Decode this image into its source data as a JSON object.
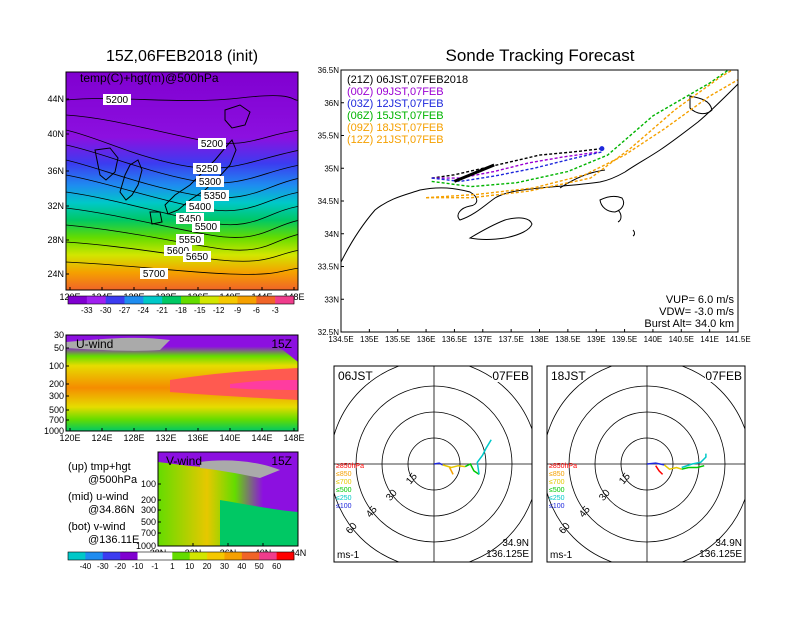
{
  "left_title": "15Z,06FEB2018 (init)",
  "right_title": "Sonde Tracking Forecast",
  "colors": {
    "bg": "#ffffff",
    "purple_deep": "#8a0fd8",
    "green": "#00c800",
    "orange": "#f5a000",
    "black": "#000000",
    "purple_line": "#9b00d3",
    "blue_line": "#1e28dc"
  },
  "chart_data": [
    {
      "type": "heatmap",
      "name_key": "temp_hgt_500hpa",
      "title": "temp(C)+hgt(m)@500hPa",
      "xticks": [
        "120E",
        "124E",
        "128E",
        "132E",
        "136E",
        "140E",
        "144E",
        "148E"
      ],
      "yticks": [
        "24N",
        "28N",
        "32N",
        "36N",
        "40N",
        "44N"
      ],
      "contour_labels": [
        "5200",
        "5200",
        "5250",
        "5300",
        "5350",
        "5400",
        "5450",
        "5500",
        "5550",
        "5600",
        "5650",
        "5700"
      ],
      "colorbar": [
        "-33",
        "-30",
        "-27",
        "-24",
        "-21",
        "-18",
        "-15",
        "-12",
        "-9",
        "-6",
        "-3"
      ]
    },
    {
      "type": "heatmap",
      "name_key": "u_wind",
      "title": "U-wind",
      "time_label": "15Z",
      "xticks": [
        "120E",
        "124E",
        "128E",
        "132E",
        "136E",
        "140E",
        "144E",
        "148E"
      ],
      "yticks": [
        "30",
        "50",
        "100",
        "200",
        "300",
        "500",
        "700",
        "1000"
      ]
    },
    {
      "type": "heatmap",
      "name_key": "v_wind",
      "title": "V-wind",
      "time_label": "15Z",
      "xticks": [
        "28N",
        "32N",
        "36N",
        "40N",
        "44N"
      ],
      "yticks": [
        "100",
        "200",
        "300",
        "500",
        "700",
        "1000"
      ],
      "colorbar": [
        "-40",
        "-30",
        "-20",
        "-10",
        "-1",
        "1",
        "10",
        "20",
        "30",
        "40",
        "50",
        "60"
      ]
    },
    {
      "type": "line",
      "name_key": "sonde_tracks",
      "xticks": [
        "134.5E",
        "135E",
        "135.5E",
        "136E",
        "136.5E",
        "137E",
        "137.5E",
        "138E",
        "138.5E",
        "139E",
        "139.5E",
        "140E",
        "140.5E",
        "141E",
        "141.5E"
      ],
      "yticks": [
        "32.5N",
        "33N",
        "33.5N",
        "34N",
        "34.5N",
        "35N",
        "35.5N",
        "36N",
        "36.5N"
      ],
      "xlim": [
        134.5,
        141.5
      ],
      "ylim": [
        32.5,
        36.5
      ],
      "legend": [
        {
          "label": "(21Z)  06JST,07FEB2018",
          "color": "#000000"
        },
        {
          "label": "(00Z)  09JST,07FEB",
          "color": "#9b00d3"
        },
        {
          "label": "(03Z)  12JST,07FEB",
          "color": "#1e28dc"
        },
        {
          "label": "(06Z)  15JST,07FEB",
          "color": "#00b400"
        },
        {
          "label": "(09Z)  18JST,07FEB",
          "color": "#f5a000"
        },
        {
          "label": "(12Z)  21JST,07FEB",
          "color": "#f5a000"
        }
      ],
      "params": [
        "VUP=  6.0  m/s",
        "VDW= -3.0  m/s",
        "Burst Alt=  34.0  km"
      ]
    },
    {
      "type": "line",
      "name_key": "hodograph_06jst",
      "left_label": "06JST",
      "right_label": "07FEB",
      "radial_labels": [
        "15",
        "30",
        "45",
        "60"
      ],
      "level_legend": [
        "≥850hPa",
        "≤850",
        "≤700",
        "≤500",
        "≤250",
        "≤100"
      ],
      "unit": "ms-1",
      "location": [
        "34.9N",
        "136.125E"
      ]
    },
    {
      "type": "line",
      "name_key": "hodograph_18jst",
      "left_label": "18JST",
      "right_label": "07FEB",
      "radial_labels": [
        "15",
        "30",
        "45",
        "60"
      ],
      "level_legend": [
        "≥850hPa",
        "≤850",
        "≤700",
        "≤500",
        "≤250",
        "≤100"
      ],
      "unit": "ms-1",
      "location": [
        "34.9N",
        "136.125E"
      ]
    }
  ],
  "info_text": {
    "up_1": "(up) tmp+hgt",
    "up_2": "@500hPa",
    "mid_1": "(mid) u-wind",
    "mid_2": "@34.86N",
    "bot_1": "(bot) v-wind",
    "bot_2": "@136.11E"
  }
}
